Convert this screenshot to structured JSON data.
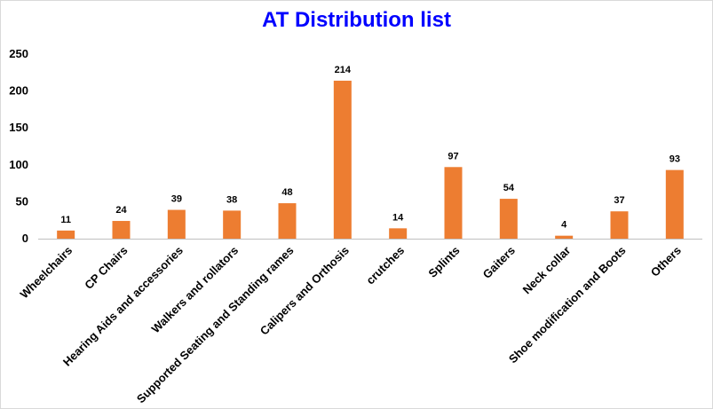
{
  "chart_data": {
    "type": "bar",
    "title": "AT Distribution list",
    "categories": [
      "Wheelchairs",
      "CP Chairs",
      "Hearing Aids and accessories",
      "Walkers and rollators",
      "Supported Seating and Standing rames",
      "Calipers and Orthosis",
      "crutches",
      "Splints",
      "Gaiters",
      "Neck collar",
      "Shoe modification and Boots",
      "Others"
    ],
    "values": [
      11,
      24,
      39,
      38,
      48,
      214,
      14,
      97,
      54,
      4,
      37,
      93
    ],
    "yticks": [
      0,
      50,
      100,
      150,
      200,
      250
    ],
    "ylim": [
      0,
      250
    ],
    "xlabel": "",
    "ylabel": "",
    "grid": false,
    "legend": false,
    "data_labels": true,
    "colors": {
      "bar": "#ed7d31",
      "title": "#0000ff",
      "axis": "#bfbfbf"
    }
  }
}
